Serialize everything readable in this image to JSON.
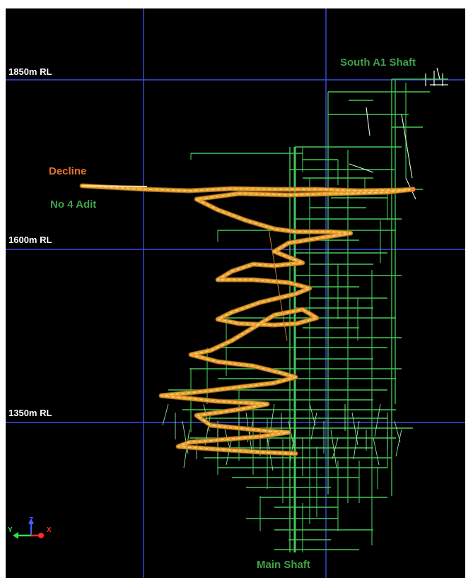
{
  "levels": [
    {
      "label": "1850m RL"
    },
    {
      "label": "1600m RL"
    },
    {
      "label": "1350m RL"
    }
  ],
  "annotations": {
    "south_shaft": "South A1 Shaft",
    "decline": "Decline",
    "adit": "No 4 Adit",
    "main_shaft": "Main Shaft"
  },
  "axis_triad": {
    "z": "Z",
    "y": "Y",
    "x": "X"
  },
  "colors": {
    "background": "#000000",
    "grid": "#3c4ce6",
    "workings": "#46c85a",
    "decline": "#e6a030",
    "decline_highlight": "#ffd27a",
    "rl_label": "#ffffff",
    "green_label": "#3fa04a",
    "orange_label": "#e8742a",
    "axis_z": "#4a5cff",
    "axis_y": "#2ee04a",
    "axis_x": "#ff2a2a"
  }
}
